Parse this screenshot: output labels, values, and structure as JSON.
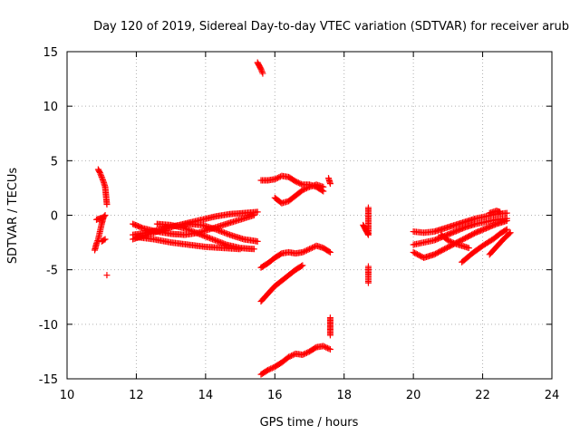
{
  "chart_data": {
    "type": "scatter",
    "title": "Day 120 of 2019, Sidereal Day-to-day VTEC variation (SDTVAR) for receiver arub",
    "xlabel": "GPS time / hours",
    "ylabel": "SDTVAR / TECUs",
    "xlim": [
      10,
      24
    ],
    "ylim": [
      -15,
      15
    ],
    "xticks": [
      "10",
      "12",
      "14",
      "16",
      "18",
      "20",
      "22",
      "24"
    ],
    "yticks": [
      "15",
      "10",
      "5",
      "0",
      "-5",
      "-10",
      "-15"
    ],
    "grid": true,
    "marker": "+",
    "color": "#ff0000",
    "series": [
      {
        "x": [
          10.8,
          10.85,
          10.9,
          10.95,
          11.0,
          11.05,
          11.1
        ],
        "y": [
          -3.2,
          -2.6,
          -2.2,
          -1.5,
          -0.8,
          -0.2,
          0.0
        ]
      },
      {
        "x": [
          10.9,
          10.95,
          11.0,
          11.05,
          11.1,
          11.15
        ],
        "y": [
          4.2,
          3.9,
          3.5,
          3.1,
          2.6,
          1.0
        ]
      },
      {
        "x": [
          10.85,
          10.95,
          11.05
        ],
        "y": [
          -0.4,
          -0.3,
          -0.2
        ]
      },
      {
        "x": [
          11.0,
          11.1
        ],
        "y": [
          -2.4,
          -2.2
        ]
      },
      {
        "x": [
          11.15
        ],
        "y": [
          -5.5
        ]
      },
      {
        "x": [
          11.9,
          12.2,
          12.6,
          13.0,
          13.4,
          13.8,
          14.2,
          14.6,
          15.0,
          15.4
        ],
        "y": [
          -0.8,
          -1.2,
          -1.5,
          -1.7,
          -1.8,
          -1.6,
          -1.2,
          -0.8,
          -0.4,
          0.0
        ]
      },
      {
        "x": [
          11.9,
          12.3,
          12.7,
          13.1,
          13.5,
          13.9,
          14.3,
          14.7,
          15.1,
          15.5
        ],
        "y": [
          -1.8,
          -1.6,
          -1.3,
          -1.0,
          -0.7,
          -0.4,
          -0.1,
          0.1,
          0.2,
          0.3
        ]
      },
      {
        "x": [
          11.9,
          12.3,
          12.7,
          13.1,
          13.5,
          13.9,
          14.3,
          14.7,
          15.1,
          15.5
        ],
        "y": [
          -2.2,
          -1.8,
          -1.4,
          -1.0,
          -0.8,
          -0.9,
          -1.3,
          -1.8,
          -2.2,
          -2.4
        ]
      },
      {
        "x": [
          12.6,
          13.0,
          13.4,
          13.8,
          14.2,
          14.6,
          15.0,
          15.4
        ],
        "y": [
          -0.8,
          -0.9,
          -1.2,
          -1.7,
          -2.2,
          -2.7,
          -3.0,
          -3.1
        ]
      },
      {
        "x": [
          12.0,
          12.5,
          13.0,
          13.5,
          14.0,
          14.5,
          15.0
        ],
        "y": [
          -2.0,
          -2.2,
          -2.5,
          -2.7,
          -2.9,
          -3.0,
          -3.1
        ]
      },
      {
        "x": [
          15.5,
          15.55,
          15.6,
          15.65
        ],
        "y": [
          14.0,
          13.7,
          13.4,
          13.0
        ]
      },
      {
        "x": [
          15.6,
          15.8,
          16.0,
          16.2,
          16.4,
          16.6,
          16.8,
          17.0,
          17.2,
          17.4
        ],
        "y": [
          3.2,
          3.2,
          3.3,
          3.6,
          3.5,
          3.1,
          2.8,
          2.8,
          2.6,
          2.2
        ]
      },
      {
        "x": [
          16.0,
          16.2,
          16.4,
          16.6,
          16.8,
          17.0,
          17.2,
          17.4
        ],
        "y": [
          1.6,
          1.1,
          1.3,
          1.8,
          2.3,
          2.6,
          2.8,
          2.6
        ]
      },
      {
        "x": [
          17.55,
          17.6
        ],
        "y": [
          3.4,
          2.9
        ]
      },
      {
        "x": [
          15.6,
          15.8,
          16.0,
          16.2,
          16.4,
          16.6,
          16.8,
          17.0,
          17.2,
          17.4,
          17.6
        ],
        "y": [
          -4.8,
          -4.4,
          -3.9,
          -3.5,
          -3.4,
          -3.5,
          -3.4,
          -3.1,
          -2.8,
          -3.0,
          -3.4
        ]
      },
      {
        "x": [
          15.6,
          15.8,
          16.0,
          16.2,
          16.4,
          16.6,
          16.8
        ],
        "y": [
          -7.9,
          -7.2,
          -6.5,
          -6.0,
          -5.5,
          -5.0,
          -4.6
        ]
      },
      {
        "x": [
          15.6,
          15.8,
          16.0,
          16.2,
          16.4,
          16.6,
          16.8,
          17.0,
          17.2,
          17.4,
          17.6
        ],
        "y": [
          -14.6,
          -14.2,
          -13.9,
          -13.5,
          -13.0,
          -12.7,
          -12.8,
          -12.5,
          -12.1,
          -12.0,
          -12.3
        ]
      },
      {
        "x": [
          17.6,
          17.6,
          17.6,
          17.6
        ],
        "y": [
          -9.4,
          -10.0,
          -10.6,
          -11.0
        ]
      },
      {
        "x": [
          18.55,
          18.6,
          18.65,
          18.7,
          18.7
        ],
        "y": [
          -0.9,
          -1.2,
          -1.5,
          -1.8,
          0.7
        ]
      },
      {
        "x": [
          18.7,
          18.7
        ],
        "y": [
          -4.7,
          -6.2
        ]
      },
      {
        "x": [
          20.0,
          20.3,
          20.6,
          20.9,
          21.2,
          21.5,
          21.8,
          22.1,
          22.4,
          22.7
        ],
        "y": [
          -1.5,
          -1.6,
          -1.5,
          -1.2,
          -0.9,
          -0.6,
          -0.3,
          -0.1,
          0.1,
          0.2
        ]
      },
      {
        "x": [
          20.0,
          20.3,
          20.6,
          20.9,
          21.2,
          21.5,
          21.8,
          22.1,
          22.4,
          22.7
        ],
        "y": [
          -2.7,
          -2.5,
          -2.3,
          -1.9,
          -1.5,
          -1.1,
          -0.8,
          -0.6,
          -0.4,
          -0.3
        ]
      },
      {
        "x": [
          20.0,
          20.3,
          20.6,
          20.9,
          21.2,
          21.5,
          21.8,
          22.1,
          22.4,
          22.7
        ],
        "y": [
          -3.4,
          -3.9,
          -3.6,
          -3.1,
          -2.6,
          -2.1,
          -1.6,
          -1.2,
          -0.8,
          -0.5
        ]
      },
      {
        "x": [
          20.8,
          21.0,
          21.2,
          21.4,
          21.6
        ],
        "y": [
          -1.8,
          -2.3,
          -2.6,
          -2.8,
          -3.0
        ]
      },
      {
        "x": [
          21.4,
          21.7,
          22.0,
          22.3,
          22.5,
          22.7
        ],
        "y": [
          -4.3,
          -3.5,
          -2.8,
          -2.2,
          -1.7,
          -1.3
        ]
      },
      {
        "x": [
          22.2,
          22.4,
          22.6,
          22.8
        ],
        "y": [
          -3.6,
          -2.9,
          -2.2,
          -1.6
        ]
      },
      {
        "x": [
          22.2,
          22.4,
          22.5
        ],
        "y": [
          0.2,
          0.4,
          0.3
        ]
      }
    ]
  }
}
